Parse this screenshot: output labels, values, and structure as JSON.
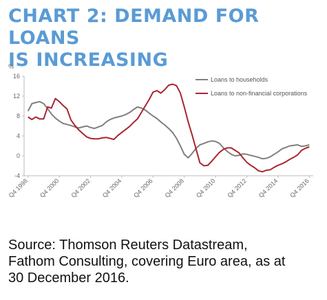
{
  "title": {
    "line1": "CHART 2: DEMAND FOR LOANS",
    "line2": "IS INCREASING"
  },
  "source": {
    "line1": "Source: Thomson Reuters Datastream,",
    "line2": "Fathom Consulting, covering Euro area, as at",
    "line3": "30 December 2016."
  },
  "colors": {
    "title": "#5a9bd5",
    "households": "#7f7f7f",
    "corporations": "#a8242f"
  },
  "chart_data": {
    "type": "line",
    "y_unit": "%",
    "ylim": [
      -4,
      16
    ],
    "yticks": [
      -4,
      0,
      4,
      8,
      12,
      16
    ],
    "xlim": [
      1998.5,
      2017.0
    ],
    "xtick_labels": [
      "Q4 1998",
      "Q4 2000",
      "Q4 2002",
      "Q4 2004",
      "Q4 2006",
      "Q4 2008",
      "Q4 2010",
      "Q4 2012",
      "Q4 2014",
      "Q4 2016"
    ],
    "xtick_values": [
      1998.75,
      2000.75,
      2002.75,
      2004.75,
      2006.75,
      2008.75,
      2010.75,
      2012.75,
      2014.75,
      2016.75
    ],
    "grid": false,
    "legend_position": "top-right",
    "series": [
      {
        "name": "Loans to households",
        "x": [
          1998.75,
          1999.0,
          1999.25,
          1999.5,
          1999.75,
          2000.0,
          2000.25,
          2000.5,
          2000.75,
          2001.0,
          2001.25,
          2001.5,
          2001.75,
          2002.0,
          2002.25,
          2002.5,
          2002.75,
          2003.0,
          2003.25,
          2003.5,
          2003.75,
          2004.0,
          2004.25,
          2004.5,
          2004.75,
          2005.0,
          2005.25,
          2005.5,
          2005.75,
          2006.0,
          2006.25,
          2006.5,
          2006.75,
          2007.0,
          2007.25,
          2007.5,
          2007.75,
          2008.0,
          2008.25,
          2008.5,
          2008.75,
          2009.0,
          2009.25,
          2009.5,
          2009.75,
          2010.0,
          2010.25,
          2010.5,
          2010.75,
          2011.0,
          2011.25,
          2011.5,
          2011.75,
          2012.0,
          2012.25,
          2012.5,
          2012.75,
          2013.0,
          2013.25,
          2013.5,
          2013.75,
          2014.0,
          2014.25,
          2014.5,
          2014.75,
          2015.0,
          2015.25,
          2015.5,
          2015.75,
          2016.0,
          2016.25,
          2016.5,
          2016.75
        ],
        "values": [
          9.0,
          10.5,
          10.7,
          10.9,
          10.5,
          9.5,
          8.4,
          7.6,
          7.0,
          6.5,
          6.3,
          6.1,
          5.8,
          5.6,
          5.8,
          6.0,
          5.7,
          5.5,
          5.8,
          6.1,
          6.8,
          7.3,
          7.6,
          7.8,
          8.0,
          8.3,
          8.7,
          9.3,
          9.8,
          9.6,
          9.2,
          8.6,
          8.0,
          7.5,
          6.8,
          6.2,
          5.5,
          4.7,
          3.5,
          2.0,
          0.3,
          -0.4,
          0.5,
          1.5,
          2.2,
          2.5,
          2.8,
          3.0,
          2.9,
          2.5,
          1.6,
          0.9,
          0.3,
          0.0,
          0.1,
          0.4,
          0.3,
          0.1,
          -0.1,
          -0.3,
          -0.6,
          -0.5,
          -0.2,
          0.3,
          0.8,
          1.4,
          1.7,
          2.0,
          2.1,
          2.2,
          1.9,
          2.0,
          2.2
        ]
      },
      {
        "name": "Loans to non-financial corporations",
        "x": [
          1998.75,
          1999.0,
          1999.25,
          1999.5,
          1999.75,
          2000.0,
          2000.25,
          2000.5,
          2000.75,
          2001.0,
          2001.25,
          2001.5,
          2001.75,
          2002.0,
          2002.25,
          2002.5,
          2002.75,
          2003.0,
          2003.25,
          2003.5,
          2003.75,
          2004.0,
          2004.25,
          2004.5,
          2004.75,
          2005.0,
          2005.25,
          2005.5,
          2005.75,
          2006.0,
          2006.25,
          2006.5,
          2006.75,
          2007.0,
          2007.25,
          2007.5,
          2007.75,
          2008.0,
          2008.25,
          2008.5,
          2008.75,
          2009.0,
          2009.25,
          2009.5,
          2009.75,
          2010.0,
          2010.25,
          2010.5,
          2010.75,
          2011.0,
          2011.25,
          2011.5,
          2011.75,
          2012.0,
          2012.25,
          2012.5,
          2012.75,
          2013.0,
          2013.25,
          2013.5,
          2013.75,
          2014.0,
          2014.25,
          2014.5,
          2014.75,
          2015.0,
          2015.25,
          2015.5,
          2015.75,
          2016.0,
          2016.25,
          2016.5,
          2016.75
        ],
        "values": [
          7.8,
          7.3,
          7.8,
          7.4,
          7.4,
          9.8,
          9.6,
          11.5,
          10.9,
          10.1,
          9.4,
          7.2,
          6.1,
          5.2,
          4.5,
          3.8,
          3.5,
          3.4,
          3.4,
          3.6,
          3.7,
          3.5,
          3.3,
          4.1,
          4.7,
          5.3,
          5.9,
          6.7,
          7.4,
          8.7,
          10.0,
          11.3,
          12.8,
          13.1,
          12.6,
          13.3,
          14.2,
          14.4,
          14.1,
          12.6,
          9.8,
          6.8,
          4.2,
          1.4,
          -1.4,
          -2.0,
          -1.9,
          -1.1,
          -0.2,
          0.7,
          1.3,
          1.6,
          1.6,
          1.1,
          0.6,
          -0.4,
          -1.3,
          -1.9,
          -2.4,
          -3.0,
          -3.2,
          -2.9,
          -2.8,
          -2.3,
          -1.9,
          -1.6,
          -1.2,
          -0.7,
          -0.3,
          0.2,
          1.1,
          1.5,
          1.8
        ]
      }
    ]
  }
}
